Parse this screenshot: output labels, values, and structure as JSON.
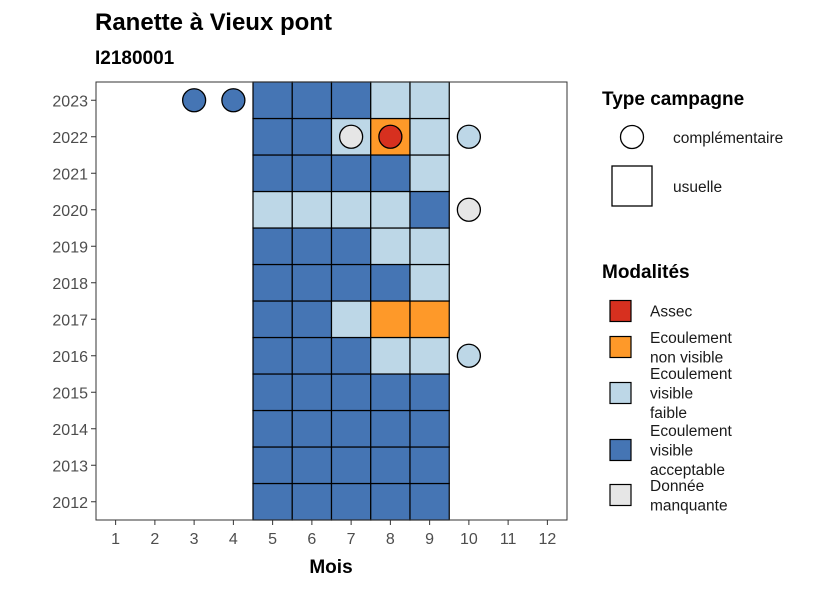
{
  "chart_data": {
    "type": "heatmap",
    "title": "Ranette à Vieux pont",
    "subtitle": "I2180001",
    "xlabel": "Mois",
    "ylabel": "",
    "x_ticks": [
      "1",
      "2",
      "3",
      "4",
      "5",
      "6",
      "7",
      "8",
      "9",
      "10",
      "11",
      "12"
    ],
    "y_ticks": [
      "2012",
      "2013",
      "2014",
      "2015",
      "2016",
      "2017",
      "2018",
      "2019",
      "2020",
      "2021",
      "2022",
      "2023"
    ],
    "xlim": [
      0.5,
      12.5
    ],
    "ylim": [
      2011.5,
      2023.5
    ],
    "grid": false,
    "legend_placement": "right",
    "colors": {
      "Assec": "#d7301f",
      "Ecoulement non visible": "#fe9929",
      "Ecoulement visible faible": "#bdd7e7",
      "Ecoulement visible acceptable": "#4575b4",
      "Donnée manquante": "#e6e6e6"
    },
    "legend_campagne": {
      "title": "Type campagne",
      "items": [
        {
          "label": "complémentaire",
          "shape": "circle"
        },
        {
          "label": "usuelle",
          "shape": "square"
        }
      ]
    },
    "legend_modalites": {
      "title": "Modalités",
      "items": [
        {
          "key": "Assec",
          "lines": [
            "Assec"
          ]
        },
        {
          "key": "Ecoulement non visible",
          "lines": [
            "Ecoulement",
            "non visible"
          ]
        },
        {
          "key": "Ecoulement visible faible",
          "lines": [
            "Ecoulement",
            "visible",
            "faible"
          ]
        },
        {
          "key": "Ecoulement visible acceptable",
          "lines": [
            "Ecoulement",
            "visible",
            "acceptable"
          ]
        },
        {
          "key": "Donnée manquante",
          "lines": [
            "Donnée",
            "manquante"
          ]
        }
      ]
    },
    "tiles": [
      {
        "year": 2012,
        "month": 5,
        "value": "Ecoulement visible acceptable"
      },
      {
        "year": 2012,
        "month": 6,
        "value": "Ecoulement visible acceptable"
      },
      {
        "year": 2012,
        "month": 7,
        "value": "Ecoulement visible acceptable"
      },
      {
        "year": 2012,
        "month": 8,
        "value": "Ecoulement visible acceptable"
      },
      {
        "year": 2012,
        "month": 9,
        "value": "Ecoulement visible acceptable"
      },
      {
        "year": 2013,
        "month": 5,
        "value": "Ecoulement visible acceptable"
      },
      {
        "year": 2013,
        "month": 6,
        "value": "Ecoulement visible acceptable"
      },
      {
        "year": 2013,
        "month": 7,
        "value": "Ecoulement visible acceptable"
      },
      {
        "year": 2013,
        "month": 8,
        "value": "Ecoulement visible acceptable"
      },
      {
        "year": 2013,
        "month": 9,
        "value": "Ecoulement visible acceptable"
      },
      {
        "year": 2014,
        "month": 5,
        "value": "Ecoulement visible acceptable"
      },
      {
        "year": 2014,
        "month": 6,
        "value": "Ecoulement visible acceptable"
      },
      {
        "year": 2014,
        "month": 7,
        "value": "Ecoulement visible acceptable"
      },
      {
        "year": 2014,
        "month": 8,
        "value": "Ecoulement visible acceptable"
      },
      {
        "year": 2014,
        "month": 9,
        "value": "Ecoulement visible acceptable"
      },
      {
        "year": 2015,
        "month": 5,
        "value": "Ecoulement visible acceptable"
      },
      {
        "year": 2015,
        "month": 6,
        "value": "Ecoulement visible acceptable"
      },
      {
        "year": 2015,
        "month": 7,
        "value": "Ecoulement visible acceptable"
      },
      {
        "year": 2015,
        "month": 8,
        "value": "Ecoulement visible acceptable"
      },
      {
        "year": 2015,
        "month": 9,
        "value": "Ecoulement visible acceptable"
      },
      {
        "year": 2016,
        "month": 5,
        "value": "Ecoulement visible acceptable"
      },
      {
        "year": 2016,
        "month": 6,
        "value": "Ecoulement visible acceptable"
      },
      {
        "year": 2016,
        "month": 7,
        "value": "Ecoulement visible acceptable"
      },
      {
        "year": 2016,
        "month": 8,
        "value": "Ecoulement visible faible"
      },
      {
        "year": 2016,
        "month": 9,
        "value": "Ecoulement visible faible"
      },
      {
        "year": 2017,
        "month": 5,
        "value": "Ecoulement visible acceptable"
      },
      {
        "year": 2017,
        "month": 6,
        "value": "Ecoulement visible acceptable"
      },
      {
        "year": 2017,
        "month": 7,
        "value": "Ecoulement visible faible"
      },
      {
        "year": 2017,
        "month": 8,
        "value": "Ecoulement non visible"
      },
      {
        "year": 2017,
        "month": 9,
        "value": "Ecoulement non visible"
      },
      {
        "year": 2018,
        "month": 5,
        "value": "Ecoulement visible acceptable"
      },
      {
        "year": 2018,
        "month": 6,
        "value": "Ecoulement visible acceptable"
      },
      {
        "year": 2018,
        "month": 7,
        "value": "Ecoulement visible acceptable"
      },
      {
        "year": 2018,
        "month": 8,
        "value": "Ecoulement visible acceptable"
      },
      {
        "year": 2018,
        "month": 9,
        "value": "Ecoulement visible faible"
      },
      {
        "year": 2019,
        "month": 5,
        "value": "Ecoulement visible acceptable"
      },
      {
        "year": 2019,
        "month": 6,
        "value": "Ecoulement visible acceptable"
      },
      {
        "year": 2019,
        "month": 7,
        "value": "Ecoulement visible acceptable"
      },
      {
        "year": 2019,
        "month": 8,
        "value": "Ecoulement visible faible"
      },
      {
        "year": 2019,
        "month": 9,
        "value": "Ecoulement visible faible"
      },
      {
        "year": 2020,
        "month": 5,
        "value": "Ecoulement visible faible"
      },
      {
        "year": 2020,
        "month": 6,
        "value": "Ecoulement visible faible"
      },
      {
        "year": 2020,
        "month": 7,
        "value": "Ecoulement visible faible"
      },
      {
        "year": 2020,
        "month": 8,
        "value": "Ecoulement visible faible"
      },
      {
        "year": 2020,
        "month": 9,
        "value": "Ecoulement visible acceptable"
      },
      {
        "year": 2021,
        "month": 5,
        "value": "Ecoulement visible acceptable"
      },
      {
        "year": 2021,
        "month": 6,
        "value": "Ecoulement visible acceptable"
      },
      {
        "year": 2021,
        "month": 7,
        "value": "Ecoulement visible acceptable"
      },
      {
        "year": 2021,
        "month": 8,
        "value": "Ecoulement visible acceptable"
      },
      {
        "year": 2021,
        "month": 9,
        "value": "Ecoulement visible faible"
      },
      {
        "year": 2022,
        "month": 5,
        "value": "Ecoulement visible acceptable"
      },
      {
        "year": 2022,
        "month": 6,
        "value": "Ecoulement visible acceptable"
      },
      {
        "year": 2022,
        "month": 7,
        "value": "Ecoulement visible faible"
      },
      {
        "year": 2022,
        "month": 8,
        "value": "Ecoulement non visible"
      },
      {
        "year": 2022,
        "month": 9,
        "value": "Ecoulement visible faible"
      },
      {
        "year": 2023,
        "month": 5,
        "value": "Ecoulement visible acceptable"
      },
      {
        "year": 2023,
        "month": 6,
        "value": "Ecoulement visible acceptable"
      },
      {
        "year": 2023,
        "month": 7,
        "value": "Ecoulement visible acceptable"
      },
      {
        "year": 2023,
        "month": 8,
        "value": "Ecoulement visible faible"
      },
      {
        "year": 2023,
        "month": 9,
        "value": "Ecoulement visible faible"
      }
    ],
    "points": [
      {
        "year": 2023,
        "month": 3,
        "value": "Ecoulement visible acceptable"
      },
      {
        "year": 2023,
        "month": 4,
        "value": "Ecoulement visible acceptable"
      },
      {
        "year": 2022,
        "month": 7,
        "value": "Donnée manquante"
      },
      {
        "year": 2022,
        "month": 8,
        "value": "Assec"
      },
      {
        "year": 2022,
        "month": 10,
        "value": "Ecoulement visible faible"
      },
      {
        "year": 2020,
        "month": 10,
        "value": "Donnée manquante"
      },
      {
        "year": 2016,
        "month": 10,
        "value": "Ecoulement visible faible"
      }
    ]
  }
}
